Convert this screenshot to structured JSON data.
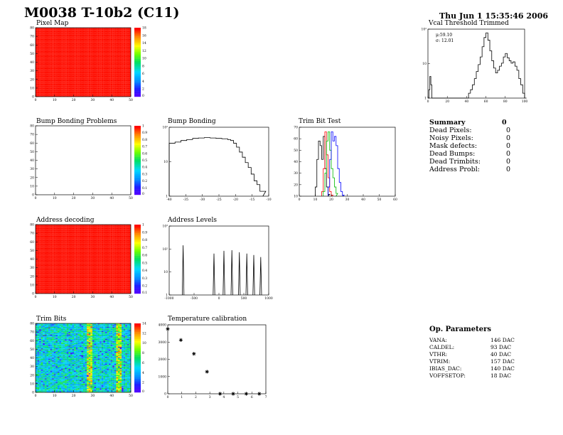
{
  "header": {
    "title": "M0038 T-10b2 (C11)",
    "date": "Thu Jun  1 15:35:46 2006"
  },
  "panels": {
    "pixel_map": {
      "title": "Pixel Map"
    },
    "vcal": {
      "title": "Vcal Threshold Trimmed",
      "mu": "μ:59.10",
      "sigma": "σ: 12.01"
    },
    "bump_problems": {
      "title": "Bump Bonding Problems"
    },
    "bump_bonding": {
      "title": "Bump Bonding"
    },
    "trim_bit_test": {
      "title": "Trim Bit Test"
    },
    "address_decoding": {
      "title": "Address decoding"
    },
    "address_levels": {
      "title": "Address Levels"
    },
    "trim_bits": {
      "title": "Trim Bits"
    },
    "temperature": {
      "title": "Temperature calibration"
    }
  },
  "summary": {
    "title": "Summary",
    "total": "0",
    "rows": [
      {
        "label": "Dead Pixels:",
        "value": "0"
      },
      {
        "label": "Noisy Pixels:",
        "value": "0"
      },
      {
        "label": "Mask defects:",
        "value": "0"
      },
      {
        "label": "Dead Bumps:",
        "value": "0"
      },
      {
        "label": "Dead Trimbits:",
        "value": "0"
      },
      {
        "label": "Address Probl:",
        "value": "0"
      }
    ]
  },
  "op_params": {
    "title": "Op. Parameters",
    "rows": [
      {
        "label": "VANA:",
        "value": "146 DAC"
      },
      {
        "label": "CALDEL:",
        "value": "93 DAC"
      },
      {
        "label": "VTHR:",
        "value": "40 DAC"
      },
      {
        "label": "VTRIM:",
        "value": "157 DAC"
      },
      {
        "label": "IBIAS_DAC:",
        "value": "140 DAC"
      },
      {
        "label": "VOFFSETOP:",
        "value": "18 DAC"
      }
    ]
  },
  "chart_data": [
    {
      "id": "pixel_map",
      "type": "heatmap",
      "x_ticks": [
        "0",
        "10",
        "20",
        "30",
        "40",
        "50"
      ],
      "y_ticks": [
        "0",
        "10",
        "20",
        "30",
        "40",
        "50",
        "60",
        "70",
        "80"
      ],
      "z_ticks": [
        "0",
        "2",
        "4",
        "6",
        "8",
        "10",
        "12",
        "14",
        "16",
        "18"
      ],
      "xlim": [
        0,
        52
      ],
      "ylim": [
        0,
        80
      ],
      "zlim": [
        0,
        20
      ],
      "fill_value": 10
    },
    {
      "id": "vcal",
      "type": "line",
      "log_y": true,
      "x_ticks": [
        "0",
        "20",
        "40",
        "60",
        "80",
        "100"
      ],
      "y_ticks": [
        "1",
        "10",
        "10²"
      ],
      "xlim": [
        0,
        100
      ],
      "ylim": [
        1,
        300
      ],
      "series": [
        {
          "x": [
            0,
            1,
            2,
            3,
            4,
            5,
            8,
            10,
            12,
            14,
            16,
            20,
            26,
            30,
            35,
            38,
            40,
            42,
            44,
            46,
            48,
            50,
            52,
            54,
            56,
            58,
            60,
            62,
            64,
            66,
            68,
            70,
            72,
            74,
            76,
            78,
            80,
            82,
            84,
            86,
            88,
            90,
            92,
            94,
            96,
            98,
            100
          ],
          "y": [
            1,
            2,
            6,
            3,
            1,
            1,
            1,
            1,
            1,
            1,
            1,
            1,
            1,
            1,
            1,
            1,
            1,
            1.5,
            2,
            3,
            5,
            9,
            16,
            30,
            70,
            150,
            220,
            120,
            50,
            22,
            12,
            8,
            10,
            14,
            18,
            30,
            40,
            28,
            22,
            18,
            20,
            14,
            10,
            5,
            3,
            1.5,
            1
          ]
        }
      ]
    },
    {
      "id": "bump_problems",
      "type": "heatmap",
      "x_ticks": [
        "0",
        "10",
        "20",
        "30",
        "40",
        "50"
      ],
      "y_ticks": [
        "0",
        "10",
        "20",
        "30",
        "40",
        "50",
        "60",
        "70",
        "80"
      ],
      "z_ticks": [
        "0",
        "0.1",
        "0.2",
        "0.3",
        "0.4",
        "0.5",
        "0.6",
        "0.7",
        "0.8",
        "0.9",
        "1"
      ],
      "xlim": [
        0,
        52
      ],
      "ylim": [
        0,
        80
      ],
      "zlim": [
        0,
        1
      ],
      "fill_value": null
    },
    {
      "id": "bump_bonding",
      "type": "line",
      "log_y": true,
      "x_ticks": [
        "-40",
        "-35",
        "-30",
        "-25",
        "-20",
        "-15",
        "-10"
      ],
      "y_ticks": [
        "1",
        "10",
        "10²"
      ],
      "xlim": [
        -40,
        -6
      ],
      "ylim": [
        0.6,
        800
      ],
      "series": [
        {
          "x": [
            -40,
            -38,
            -36,
            -34,
            -32,
            -30,
            -28,
            -26,
            -24,
            -22,
            -20,
            -19,
            -18,
            -17,
            -16,
            -15,
            -14,
            -13,
            -12,
            -11,
            -10,
            -9,
            -8
          ],
          "y": [
            150,
            170,
            200,
            220,
            250,
            260,
            270,
            260,
            250,
            240,
            220,
            200,
            150,
            100,
            60,
            35,
            20,
            12,
            6,
            3,
            2,
            1,
            1
          ]
        }
      ]
    },
    {
      "id": "trim_bit_test",
      "type": "line",
      "log_y": false,
      "x_ticks": [
        "0",
        "10",
        "20",
        "30",
        "40",
        "50",
        "60"
      ],
      "y_ticks": [
        "10",
        "20",
        "30",
        "40",
        "50",
        "60",
        "70"
      ],
      "xlim": [
        0,
        60
      ],
      "ylim": [
        0,
        75
      ],
      "series": [
        {
          "name": "",
          "color": "#000000",
          "x": [
            10,
            11,
            12,
            13,
            14,
            15,
            16,
            17,
            18
          ],
          "y": [
            10,
            40,
            60,
            55,
            40,
            65,
            30,
            10,
            2
          ]
        },
        {
          "name": "",
          "color": "#ff0000",
          "x": [
            14,
            15,
            16,
            17,
            18,
            19,
            20
          ],
          "y": [
            5,
            30,
            70,
            45,
            20,
            5,
            1
          ]
        },
        {
          "name": "",
          "color": "#00bb00",
          "x": [
            15,
            16,
            17,
            18,
            19,
            20,
            21,
            22,
            23
          ],
          "y": [
            5,
            25,
            60,
            70,
            50,
            30,
            20,
            10,
            3
          ]
        },
        {
          "name": "",
          "color": "#0000ff",
          "x": [
            18,
            19,
            20,
            21,
            22,
            23,
            24,
            25,
            26,
            27
          ],
          "y": [
            10,
            40,
            70,
            60,
            65,
            55,
            30,
            15,
            5,
            1
          ]
        }
      ]
    },
    {
      "id": "address_decoding",
      "type": "heatmap",
      "x_ticks": [
        "0",
        "10",
        "20",
        "30",
        "40",
        "50"
      ],
      "y_ticks": [
        "0",
        "10",
        "20",
        "30",
        "40",
        "50",
        "60",
        "70",
        "80"
      ],
      "z_ticks": [
        "0.1",
        "0.2",
        "0.3",
        "0.4",
        "0.5",
        "0.6",
        "0.7",
        "0.8",
        "0.9",
        "1"
      ],
      "xlim": [
        0,
        52
      ],
      "ylim": [
        0,
        80
      ],
      "zlim": [
        0,
        1
      ],
      "fill_value": 1
    },
    {
      "id": "address_levels",
      "type": "line",
      "log_y": true,
      "x_ticks": [
        "-1000",
        "-500",
        "0",
        "500",
        "1000"
      ],
      "y_ticks": [
        "1",
        "10",
        "10²",
        "10³"
      ],
      "xlim": [
        -1000,
        1000
      ],
      "peaks": [
        -720,
        -100,
        100,
        260,
        410,
        560,
        700,
        840
      ],
      "peak_heights": [
        0.72,
        0.6,
        0.64,
        0.65,
        0.62,
        0.6,
        0.58,
        0.55
      ]
    },
    {
      "id": "trim_bits",
      "type": "heatmap",
      "x_ticks": [
        "0",
        "10",
        "20",
        "30",
        "40",
        "50"
      ],
      "y_ticks": [
        "0",
        "10",
        "20",
        "30",
        "40",
        "50",
        "60",
        "70",
        "80"
      ],
      "z_ticks": [
        "0",
        "2",
        "4",
        "6",
        "8",
        "10",
        "12",
        "14"
      ],
      "xlim": [
        0,
        52
      ],
      "ylim": [
        0,
        80
      ],
      "zlim": [
        0,
        15
      ]
    },
    {
      "id": "temperature",
      "type": "scatter",
      "x_ticks": [
        "0",
        "1",
        "2",
        "3",
        "4",
        "5",
        "6",
        "7"
      ],
      "y_ticks": [
        "0",
        "1000",
        "2000",
        "3000",
        "4000"
      ],
      "xlim": [
        0,
        7.5
      ],
      "ylim": [
        0,
        5000
      ],
      "x": [
        0,
        1,
        2,
        3,
        4,
        5,
        6,
        7
      ],
      "y": [
        4700,
        3900,
        2900,
        1600,
        0,
        0,
        0,
        0
      ]
    }
  ]
}
